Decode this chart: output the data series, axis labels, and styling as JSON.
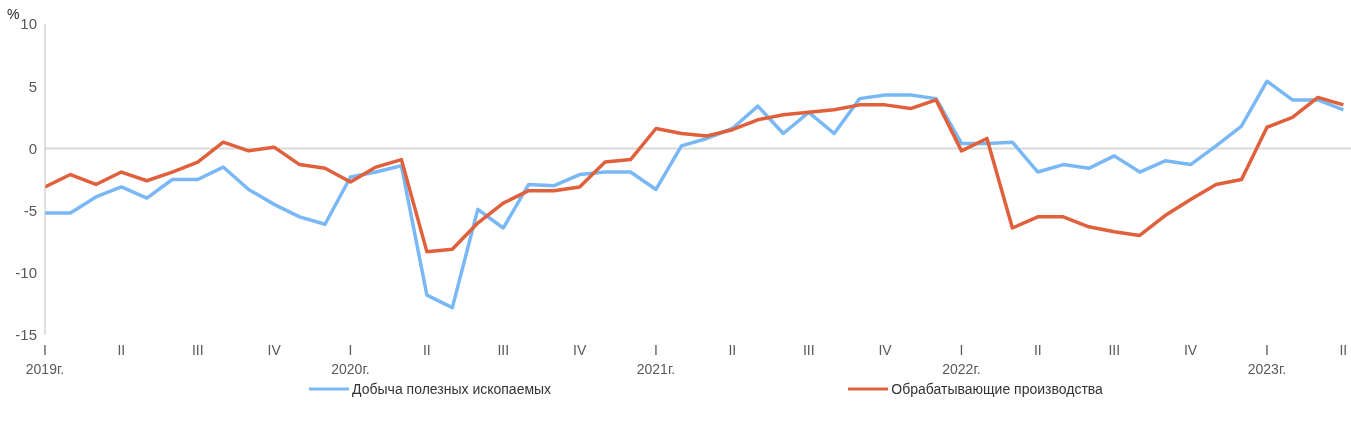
{
  "chart_data": {
    "type": "line",
    "ylabel": "%",
    "categories": [
      "I 2019г.",
      null,
      null,
      "II",
      null,
      null,
      "III",
      null,
      null,
      "IV",
      null,
      null,
      "I 2020г.",
      null,
      null,
      "II",
      null,
      null,
      "III",
      null,
      null,
      "IV",
      null,
      null,
      "I 2021г.",
      null,
      null,
      "II",
      null,
      null,
      "III",
      null,
      null,
      "IV",
      null,
      null,
      "I 2022г.",
      null,
      null,
      "II",
      null,
      null,
      "III",
      null,
      null,
      "IV",
      null,
      null,
      "I 2023г.",
      null,
      null,
      "II"
    ],
    "series": [
      {
        "name": "Добыча полезных ископаемых",
        "color": "#7ab8f5",
        "values": [
          -5.2,
          -5.2,
          -3.9,
          -3.1,
          -4.0,
          -2.5,
          -2.5,
          -1.5,
          -3.3,
          -4.5,
          -5.5,
          -6.1,
          -2.3,
          -1.9,
          -1.4,
          -11.8,
          -12.8,
          -4.9,
          -6.4,
          -2.9,
          -3.0,
          -2.1,
          -1.9,
          -1.9,
          -3.3,
          0.2,
          0.8,
          1.6,
          3.4,
          1.2,
          2.9,
          1.2,
          4.0,
          4.3,
          4.3,
          4.0,
          0.4,
          0.4,
          0.5,
          -1.9,
          -1.3,
          -1.6,
          -0.6,
          -1.9,
          -1.0,
          -1.3,
          0.2,
          1.8,
          5.4,
          3.9,
          3.9,
          3.1
        ]
      },
      {
        "name": "Обрабатывающие производства",
        "color": "#e0603c",
        "values": [
          -3.1,
          -2.1,
          -2.9,
          -1.9,
          -2.6,
          -1.9,
          -1.1,
          0.5,
          -0.2,
          0.1,
          -1.3,
          -1.6,
          -2.7,
          -1.5,
          -0.9,
          -8.3,
          -8.1,
          -6.0,
          -4.4,
          -3.4,
          -3.4,
          -3.1,
          -1.1,
          -0.9,
          1.6,
          1.2,
          1.0,
          1.5,
          2.3,
          2.7,
          2.9,
          3.1,
          3.5,
          3.5,
          3.2,
          3.9,
          -0.2,
          0.8,
          -6.4,
          -5.5,
          -5.5,
          -6.3,
          -6.7,
          -7.0,
          -5.4,
          -4.1,
          -2.9,
          -2.5,
          1.7,
          2.5,
          4.1,
          3.5
        ]
      }
    ],
    "ylim": [
      -15,
      10
    ],
    "yticks": [
      -15,
      -10,
      -5,
      0,
      5,
      10
    ],
    "grid": false,
    "legend": "bottom",
    "marker": "none",
    "line_style": "solid",
    "ref_lines": [
      {
        "axis": "y",
        "value": 0,
        "color": "#d9d9d9"
      }
    ]
  }
}
